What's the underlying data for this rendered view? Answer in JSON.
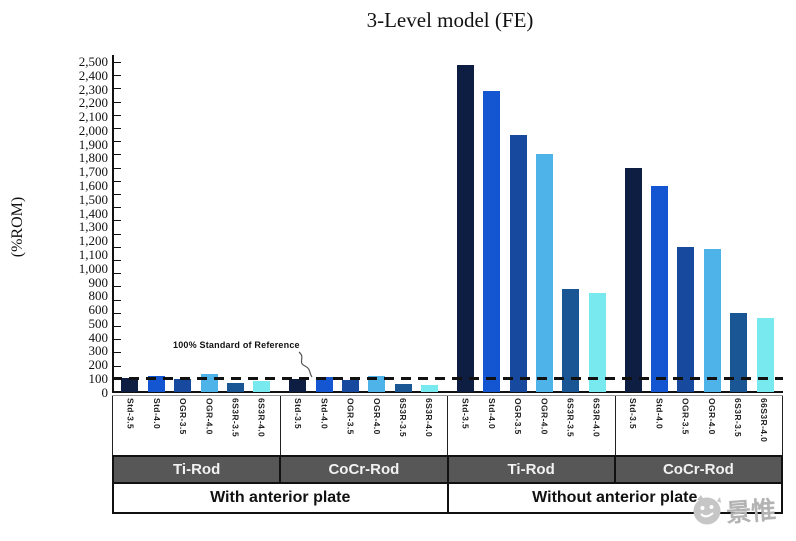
{
  "title": "3-Level model (FE)",
  "y_axis": {
    "label": "(%ROM)",
    "tick_labels": [
      "2,500",
      "2,400",
      "2,300",
      "2,200",
      "2,100",
      "2,000",
      "1,900",
      "1,800",
      "1,700",
      "1,600",
      "1,500",
      "1,400",
      "1,300",
      "1,200",
      "1,100",
      "1,000",
      "900",
      "800",
      "600",
      "500",
      "400",
      "300",
      "200",
      "100",
      "0"
    ]
  },
  "reference": {
    "label": "100% Standard of Reference",
    "value": 100
  },
  "x_axis": {
    "rod_bands": [
      "Ti-Rod",
      "CoCr-Rod",
      "Ti-Rod",
      "CoCr-Rod"
    ],
    "plate_bands": [
      "With anterior plate",
      "Without anterior plate"
    ]
  },
  "watermark": {
    "text": "景惟"
  },
  "chart_data": {
    "type": "bar",
    "title": "3-Level model (FE)",
    "xlabel": "",
    "ylabel": "(%ROM)",
    "ylim": [
      0,
      2500
    ],
    "y_tick_step": 100,
    "grid": false,
    "legend": "none",
    "reference_line": {
      "value": 100,
      "label": "100% Standard of Reference",
      "style": "dashed-black"
    },
    "bar_colors": [
      "#0d1e42",
      "#1456d2",
      "#17499e",
      "#4eb3e9",
      "#1b5694",
      "#79e9f0"
    ],
    "groups": [
      {
        "plate": "With anterior plate",
        "rod": "Ti-Rod",
        "categories": [
          "Std-3.5",
          "Std-4.0",
          "OGR-3.5",
          "OGR-4.0",
          "6S3R-3.5",
          "6S3R-4.0"
        ],
        "values": [
          105,
          120,
          95,
          140,
          65,
          80
        ]
      },
      {
        "plate": "With anterior plate",
        "rod": "CoCr-Rod",
        "categories": [
          "Std-3.5",
          "Std-4.0",
          "OGR-3.5",
          "OGR-4.0",
          "6S3R-3.5",
          "6S3R-4.0"
        ],
        "values": [
          95,
          110,
          90,
          120,
          60,
          55
        ]
      },
      {
        "plate": "Without anterior plate",
        "rod": "Ti-Rod",
        "categories": [
          "Std-3.5",
          "Std-4.0",
          "OGR-3.5",
          "OGR-4.0",
          "6S3R-3.5",
          "6S3R-4.0"
        ],
        "values": [
          2480,
          2280,
          1950,
          1800,
          780,
          750
        ]
      },
      {
        "plate": "Without anterior plate",
        "rod": "CoCr-Rod",
        "categories": [
          "Std-3.5",
          "Std-4.0",
          "OGR-3.5",
          "OGR-4.0",
          "6S3R-3.5",
          "66S3R-4.0"
        ],
        "values": [
          1700,
          1560,
          1100,
          1080,
          600,
          560
        ]
      }
    ]
  }
}
